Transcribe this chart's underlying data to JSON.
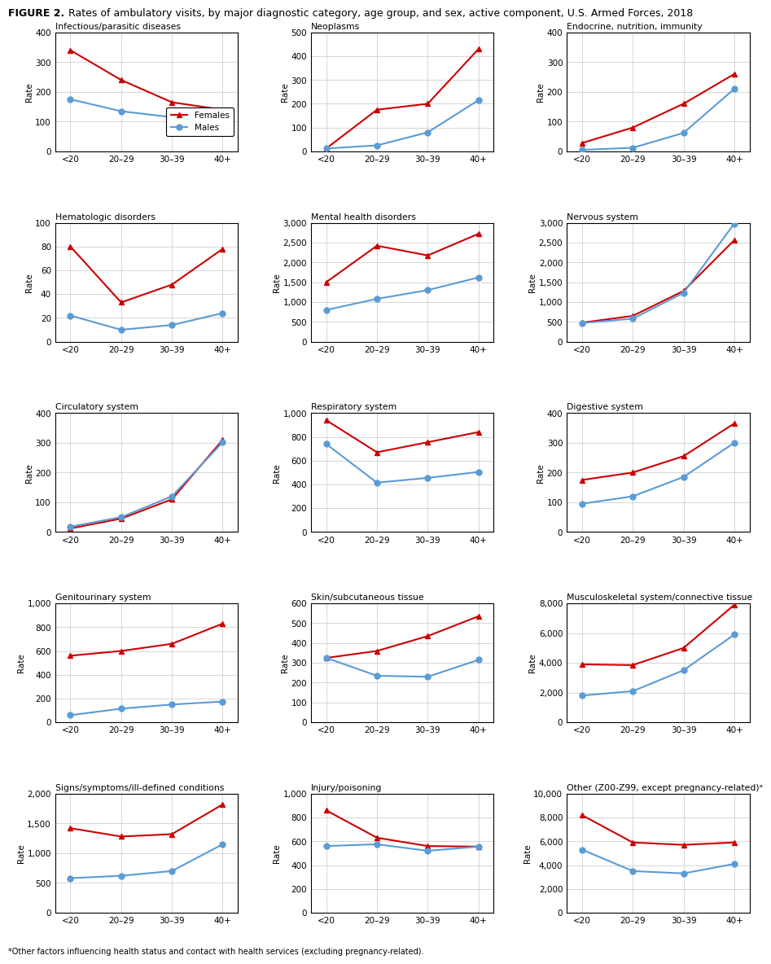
{
  "footnote": "*Other factors influencing health status and contact with health services (excluding pregnancy-related).",
  "x_labels": [
    "<20",
    "20–29",
    "30–39",
    "40+"
  ],
  "charts": [
    {
      "title": "Infectious/parasitic diseases",
      "ylim": [
        0,
        400
      ],
      "yticks": [
        0,
        100,
        200,
        300,
        400
      ],
      "females": [
        340,
        240,
        165,
        140
      ],
      "males": [
        175,
        135,
        115,
        115
      ],
      "legend": true
    },
    {
      "title": "Neoplasms",
      "ylim": [
        0,
        500
      ],
      "yticks": [
        0,
        100,
        200,
        300,
        400,
        500
      ],
      "females": [
        12,
        175,
        200,
        430
      ],
      "males": [
        12,
        25,
        80,
        215
      ],
      "legend": false
    },
    {
      "title": "Endocrine, nutrition, immunity",
      "ylim": [
        0,
        400
      ],
      "yticks": [
        0,
        100,
        200,
        300,
        400
      ],
      "females": [
        28,
        80,
        160,
        260
      ],
      "males": [
        5,
        12,
        62,
        210
      ],
      "legend": false
    },
    {
      "title": "Hematologic disorders",
      "ylim": [
        0,
        100
      ],
      "yticks": [
        0,
        20,
        40,
        60,
        80,
        100
      ],
      "females": [
        80,
        33,
        48,
        78
      ],
      "males": [
        22,
        10,
        14,
        24
      ],
      "legend": false
    },
    {
      "title": "Mental health disorders",
      "ylim": [
        0,
        3000
      ],
      "yticks": [
        0,
        500,
        1000,
        1500,
        2000,
        2500,
        3000
      ],
      "females": [
        1500,
        2420,
        2175,
        2720
      ],
      "males": [
        800,
        1080,
        1300,
        1620
      ],
      "legend": false
    },
    {
      "title": "Nervous system",
      "ylim": [
        0,
        3000
      ],
      "yticks": [
        0,
        500,
        1000,
        1500,
        2000,
        2500,
        3000
      ],
      "females": [
        480,
        650,
        1280,
        2560
      ],
      "males": [
        470,
        580,
        1230,
        2980
      ],
      "legend": false
    },
    {
      "title": "Circulatory system",
      "ylim": [
        0,
        400
      ],
      "yticks": [
        0,
        100,
        200,
        300,
        400
      ],
      "females": [
        12,
        45,
        110,
        310
      ],
      "males": [
        18,
        50,
        120,
        302
      ],
      "legend": false
    },
    {
      "title": "Respiratory system",
      "ylim": [
        0,
        1000
      ],
      "yticks": [
        0,
        200,
        400,
        600,
        800,
        1000
      ],
      "females": [
        940,
        670,
        755,
        840
      ],
      "males": [
        740,
        415,
        455,
        505
      ],
      "legend": false
    },
    {
      "title": "Digestive system",
      "ylim": [
        0,
        400
      ],
      "yticks": [
        0,
        100,
        200,
        300,
        400
      ],
      "females": [
        175,
        200,
        255,
        365
      ],
      "males": [
        95,
        120,
        185,
        300
      ],
      "legend": false
    },
    {
      "title": "Genitourinary system",
      "ylim": [
        0,
        1000
      ],
      "yticks": [
        0,
        200,
        400,
        600,
        800,
        1000
      ],
      "females": [
        560,
        600,
        660,
        830
      ],
      "males": [
        60,
        115,
        150,
        175
      ],
      "legend": false
    },
    {
      "title": "Skin/subcutaneous tissue",
      "ylim": [
        0,
        600
      ],
      "yticks": [
        0,
        100,
        200,
        300,
        400,
        500,
        600
      ],
      "females": [
        325,
        360,
        435,
        535
      ],
      "males": [
        325,
        235,
        230,
        315
      ],
      "legend": false
    },
    {
      "title": "Musculoskeletal system/connective tissue",
      "ylim": [
        0,
        8000
      ],
      "yticks": [
        0,
        2000,
        4000,
        6000,
        8000
      ],
      "females": [
        3900,
        3850,
        5000,
        7900
      ],
      "males": [
        1800,
        2100,
        3500,
        5900
      ],
      "legend": false
    },
    {
      "title": "Signs/symptoms/ill-defined conditions",
      "ylim": [
        0,
        2000
      ],
      "yticks": [
        0,
        500,
        1000,
        1500,
        2000
      ],
      "females": [
        1420,
        1280,
        1320,
        1820
      ],
      "males": [
        580,
        620,
        700,
        1150
      ],
      "legend": false
    },
    {
      "title": "Injury/poisoning",
      "ylim": [
        0,
        1000
      ],
      "yticks": [
        0,
        200,
        400,
        600,
        800,
        1000
      ],
      "females": [
        860,
        630,
        560,
        555
      ],
      "males": [
        560,
        575,
        520,
        555
      ],
      "legend": false
    },
    {
      "title": "Other (Z00-Z99, except pregnancy-related)ᵃ",
      "ylim": [
        0,
        10000
      ],
      "yticks": [
        0,
        2000,
        4000,
        6000,
        8000,
        10000
      ],
      "females": [
        8200,
        5900,
        5700,
        5900
      ],
      "males": [
        5300,
        3500,
        3300,
        4100
      ],
      "legend": false
    }
  ],
  "female_color": "#cc0000",
  "male_color": "#5b9bd5",
  "marker_female": "^",
  "marker_male": "o",
  "line_width": 1.5,
  "marker_size": 5,
  "grid_color": "#d0d0d0",
  "background_color": "#ffffff"
}
